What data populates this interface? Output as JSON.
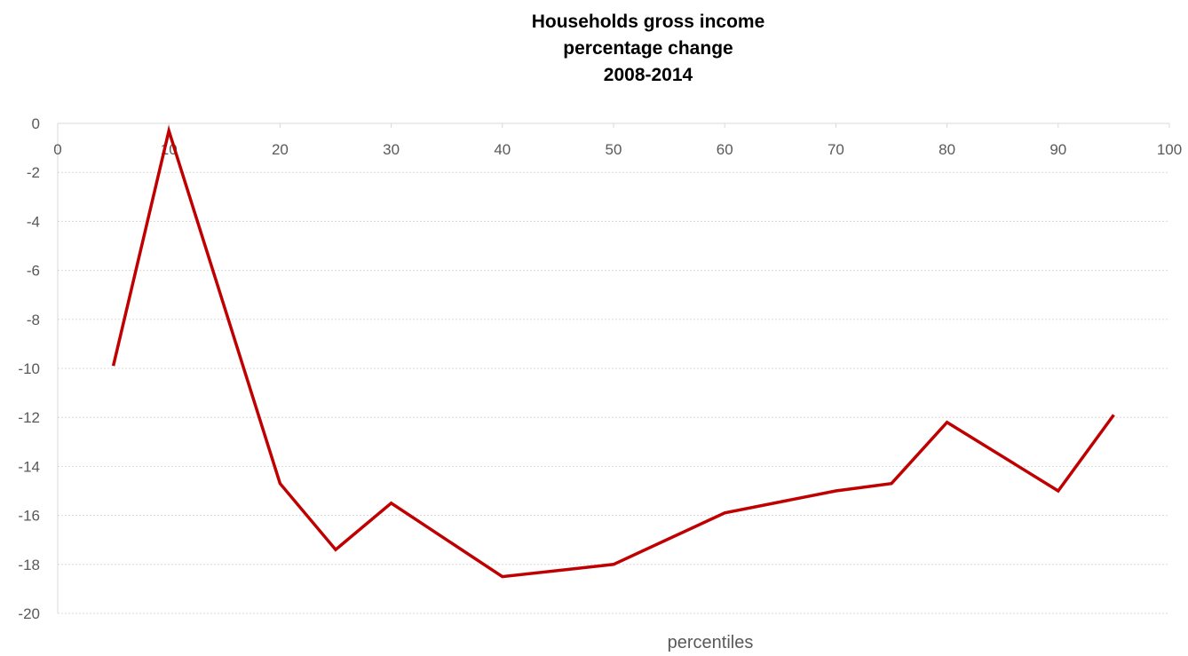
{
  "chart_data": {
    "type": "line",
    "title": [
      "Households gross income",
      "percentage change",
      "2008-2014"
    ],
    "xlabel": "percentiles",
    "ylabel": "",
    "xlim": [
      0,
      100
    ],
    "ylim": [
      -20,
      0
    ],
    "xticks": [
      0,
      10,
      20,
      30,
      40,
      50,
      60,
      70,
      80,
      90,
      100
    ],
    "yticks": [
      0,
      -2,
      -4,
      -6,
      -8,
      -10,
      -12,
      -14,
      -16,
      -18,
      -20
    ],
    "grid": "horizontal dotted",
    "x_axis_position": "top (at y=0)",
    "series": [
      {
        "color": "#C00000",
        "x": [
          5,
          10,
          20,
          25,
          30,
          40,
          50,
          60,
          70,
          75,
          80,
          90,
          95
        ],
        "y": [
          -9.9,
          -0.3,
          -14.7,
          -17.4,
          -15.5,
          -18.5,
          -18.0,
          -15.9,
          -15.0,
          -14.7,
          -12.2,
          -15.0,
          -11.9
        ]
      }
    ]
  }
}
